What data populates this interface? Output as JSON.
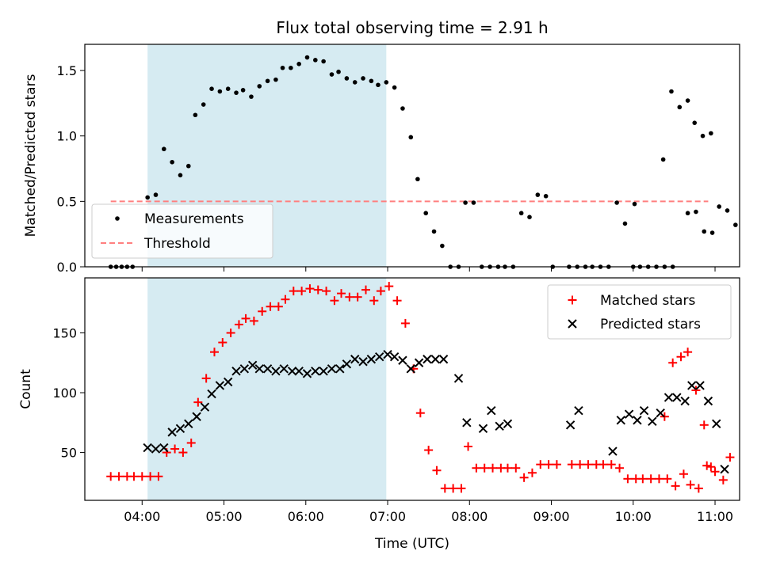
{
  "chart_data": [
    {
      "type": "scatter",
      "title": "Flux total observing time = 2.91 h",
      "xlabel": "",
      "ylabel": "Matched/Predicted stars",
      "ylim": [
        0,
        1.7
      ],
      "xlim": [
        "03:18",
        "11:18"
      ],
      "yticks": [
        "0.0",
        "0.5",
        "1.0",
        "1.5"
      ],
      "shaded_span": [
        "04:04",
        "06:59"
      ],
      "shade_color": "#add8e6",
      "legend_position": "lower-left",
      "series": [
        {
          "name": "Measurements",
          "marker": "dot",
          "color": "#000000",
          "points": [
            [
              "03:37",
              0.0
            ],
            [
              "03:41",
              0.0
            ],
            [
              "03:45",
              0.0
            ],
            [
              "03:49",
              0.0
            ],
            [
              "03:53",
              0.0
            ],
            [
              "04:04",
              0.53
            ],
            [
              "04:10",
              0.55
            ],
            [
              "04:16",
              0.9
            ],
            [
              "04:22",
              0.8
            ],
            [
              "04:28",
              0.7
            ],
            [
              "04:34",
              0.77
            ],
            [
              "04:39",
              1.16
            ],
            [
              "04:45",
              1.24
            ],
            [
              "04:51",
              1.36
            ],
            [
              "04:57",
              1.34
            ],
            [
              "05:03",
              1.36
            ],
            [
              "05:09",
              1.33
            ],
            [
              "05:14",
              1.35
            ],
            [
              "05:20",
              1.3
            ],
            [
              "05:26",
              1.38
            ],
            [
              "05:32",
              1.42
            ],
            [
              "05:38",
              1.43
            ],
            [
              "05:43",
              1.52
            ],
            [
              "05:49",
              1.52
            ],
            [
              "05:55",
              1.55
            ],
            [
              "06:01",
              1.6
            ],
            [
              "06:07",
              1.58
            ],
            [
              "06:13",
              1.57
            ],
            [
              "06:19",
              1.47
            ],
            [
              "06:24",
              1.49
            ],
            [
              "06:30",
              1.44
            ],
            [
              "06:36",
              1.41
            ],
            [
              "06:42",
              1.44
            ],
            [
              "06:48",
              1.42
            ],
            [
              "06:53",
              1.39
            ],
            [
              "06:59",
              1.41
            ],
            [
              "07:05",
              1.37
            ],
            [
              "07:11",
              1.21
            ],
            [
              "07:17",
              0.99
            ],
            [
              "07:22",
              0.67
            ],
            [
              "07:28",
              0.41
            ],
            [
              "07:34",
              0.27
            ],
            [
              "07:40",
              0.16
            ],
            [
              "07:46",
              0.0
            ],
            [
              "07:52",
              0.0
            ],
            [
              "07:57",
              0.49
            ],
            [
              "08:03",
              0.49
            ],
            [
              "08:09",
              0.0
            ],
            [
              "08:15",
              0.0
            ],
            [
              "08:21",
              0.0
            ],
            [
              "08:26",
              0.0
            ],
            [
              "08:32",
              0.0
            ],
            [
              "08:38",
              0.41
            ],
            [
              "08:44",
              0.38
            ],
            [
              "08:50",
              0.55
            ],
            [
              "08:56",
              0.54
            ],
            [
              "09:01",
              0.0
            ],
            [
              "09:13",
              0.0
            ],
            [
              "09:19",
              0.0
            ],
            [
              "09:25",
              0.0
            ],
            [
              "09:30",
              0.0
            ],
            [
              "09:36",
              0.0
            ],
            [
              "09:42",
              0.0
            ],
            [
              "09:48",
              0.49
            ],
            [
              "09:54",
              0.33
            ],
            [
              "10:00",
              0.0
            ],
            [
              "10:05",
              0.0
            ],
            [
              "10:11",
              0.0
            ],
            [
              "10:17",
              0.0
            ],
            [
              "10:23",
              0.0
            ],
            [
              "10:29",
              0.0
            ],
            [
              "10:40",
              0.41
            ],
            [
              "10:46",
              0.42
            ],
            [
              "10:52",
              0.27
            ],
            [
              "10:58",
              0.26
            ],
            [
              "11:03",
              0.46
            ],
            [
              "11:09",
              0.43
            ],
            [
              "11:15",
              0.32
            ],
            [
              "10:01",
              0.48
            ],
            [
              "10:22",
              0.82
            ],
            [
              "10:28",
              1.34
            ],
            [
              "10:34",
              1.22
            ],
            [
              "10:40",
              1.27
            ],
            [
              "10:45",
              1.1
            ],
            [
              "10:51",
              1.0
            ],
            [
              "10:57",
              1.02
            ]
          ]
        },
        {
          "name": "Threshold",
          "marker": "dashed-line",
          "color": "#ff7f7f",
          "points": [
            [
              "03:37",
              0.5
            ],
            [
              "10:55",
              0.5
            ]
          ]
        }
      ]
    },
    {
      "type": "scatter",
      "title": "",
      "xlabel": "Time (UTC)",
      "ylabel": "Count",
      "ylim": [
        10,
        196
      ],
      "xlim": [
        "03:18",
        "11:18"
      ],
      "yticks": [
        "50",
        "100",
        "150"
      ],
      "xticks": [
        "04:00",
        "05:00",
        "06:00",
        "07:00",
        "08:00",
        "09:00",
        "10:00",
        "11:00"
      ],
      "shaded_span": [
        "04:04",
        "06:59"
      ],
      "shade_color": "#add8e6",
      "legend_position": "upper-right",
      "series": [
        {
          "name": "Matched stars",
          "marker": "plus",
          "color": "#ff0000",
          "points": [
            [
              "03:37",
              30
            ],
            [
              "03:43",
              30
            ],
            [
              "03:49",
              30
            ],
            [
              "03:54",
              30
            ],
            [
              "04:00",
              30
            ],
            [
              "04:06",
              30
            ],
            [
              "04:12",
              30
            ],
            [
              "04:18",
              50
            ],
            [
              "04:24",
              53
            ],
            [
              "04:30",
              50
            ],
            [
              "04:36",
              58
            ],
            [
              "04:41",
              92
            ],
            [
              "04:47",
              112
            ],
            [
              "04:53",
              134
            ],
            [
              "04:59",
              142
            ],
            [
              "05:05",
              150
            ],
            [
              "05:11",
              157
            ],
            [
              "05:16",
              162
            ],
            [
              "05:22",
              160
            ],
            [
              "05:28",
              168
            ],
            [
              "05:34",
              172
            ],
            [
              "05:40",
              172
            ],
            [
              "05:45",
              178
            ],
            [
              "05:51",
              185
            ],
            [
              "05:57",
              185
            ],
            [
              "06:03",
              187
            ],
            [
              "06:09",
              186
            ],
            [
              "06:15",
              185
            ],
            [
              "06:21",
              177
            ],
            [
              "06:26",
              183
            ],
            [
              "06:32",
              180
            ],
            [
              "06:38",
              180
            ],
            [
              "06:44",
              186
            ],
            [
              "06:50",
              177
            ],
            [
              "06:55",
              185
            ],
            [
              "07:01",
              189
            ],
            [
              "07:07",
              177
            ],
            [
              "07:13",
              158
            ],
            [
              "07:19",
              120
            ],
            [
              "07:24",
              83
            ],
            [
              "07:30",
              52
            ],
            [
              "07:36",
              35
            ],
            [
              "07:42",
              20
            ],
            [
              "07:48",
              20
            ],
            [
              "07:54",
              20
            ],
            [
              "07:59",
              55
            ],
            [
              "08:05",
              37
            ],
            [
              "08:11",
              37
            ],
            [
              "08:17",
              37
            ],
            [
              "08:23",
              37
            ],
            [
              "08:28",
              37
            ],
            [
              "08:34",
              37
            ],
            [
              "08:40",
              29
            ],
            [
              "08:46",
              33
            ],
            [
              "08:52",
              40
            ],
            [
              "08:58",
              40
            ],
            [
              "09:04",
              40
            ],
            [
              "09:15",
              40
            ],
            [
              "09:21",
              40
            ],
            [
              "09:27",
              40
            ],
            [
              "09:33",
              40
            ],
            [
              "09:38",
              40
            ],
            [
              "09:44",
              40
            ],
            [
              "09:50",
              37
            ],
            [
              "09:56",
              28
            ],
            [
              "10:02",
              28
            ],
            [
              "10:07",
              28
            ],
            [
              "10:13",
              28
            ],
            [
              "10:19",
              28
            ],
            [
              "10:25",
              28
            ],
            [
              "10:31",
              22
            ],
            [
              "10:37",
              32
            ],
            [
              "10:42",
              23
            ],
            [
              "10:48",
              20
            ],
            [
              "10:54",
              39
            ],
            [
              "11:00",
              34
            ],
            [
              "11:06",
              27
            ],
            [
              "11:11",
              46
            ],
            [
              "10:23",
              80
            ],
            [
              "10:29",
              125
            ],
            [
              "10:35",
              130
            ],
            [
              "10:40",
              134
            ],
            [
              "10:46",
              102
            ],
            [
              "10:52",
              73
            ],
            [
              "10:57",
              38
            ]
          ]
        },
        {
          "name": "Predicted stars",
          "marker": "x",
          "color": "#000000",
          "points": [
            [
              "04:04",
              54
            ],
            [
              "04:10",
              53
            ],
            [
              "04:16",
              54
            ],
            [
              "04:22",
              67
            ],
            [
              "04:28",
              70
            ],
            [
              "04:34",
              74
            ],
            [
              "04:40",
              80
            ],
            [
              "04:46",
              88
            ],
            [
              "04:51",
              99
            ],
            [
              "04:57",
              106
            ],
            [
              "05:03",
              109
            ],
            [
              "05:09",
              118
            ],
            [
              "05:15",
              120
            ],
            [
              "05:21",
              123
            ],
            [
              "05:26",
              120
            ],
            [
              "05:32",
              120
            ],
            [
              "05:38",
              118
            ],
            [
              "05:44",
              120
            ],
            [
              "05:50",
              118
            ],
            [
              "05:55",
              118
            ],
            [
              "06:01",
              116
            ],
            [
              "06:07",
              118
            ],
            [
              "06:13",
              118
            ],
            [
              "06:19",
              120
            ],
            [
              "06:25",
              120
            ],
            [
              "06:30",
              124
            ],
            [
              "06:36",
              128
            ],
            [
              "06:42",
              126
            ],
            [
              "06:48",
              128
            ],
            [
              "06:54",
              130
            ],
            [
              "07:00",
              132
            ],
            [
              "07:05",
              130
            ],
            [
              "07:11",
              127
            ],
            [
              "07:17",
              120
            ],
            [
              "07:23",
              125
            ],
            [
              "07:29",
              128
            ],
            [
              "07:35",
              128
            ],
            [
              "07:41",
              128
            ],
            [
              "07:52",
              112
            ],
            [
              "07:58",
              75
            ],
            [
              "08:10",
              70
            ],
            [
              "08:16",
              85
            ],
            [
              "08:22",
              72
            ],
            [
              "08:28",
              74
            ],
            [
              "09:14",
              73
            ],
            [
              "09:20",
              85
            ],
            [
              "09:45",
              51
            ],
            [
              "09:51",
              77
            ],
            [
              "09:57",
              82
            ],
            [
              "10:03",
              77
            ],
            [
              "10:08",
              85
            ],
            [
              "10:14",
              76
            ],
            [
              "10:20",
              83
            ],
            [
              "10:26",
              96
            ],
            [
              "10:32",
              96
            ],
            [
              "10:38",
              93
            ],
            [
              "10:43",
              106
            ],
            [
              "10:49",
              106
            ],
            [
              "10:55",
              93
            ],
            [
              "11:01",
              74
            ],
            [
              "11:07",
              36
            ]
          ]
        }
      ]
    }
  ]
}
